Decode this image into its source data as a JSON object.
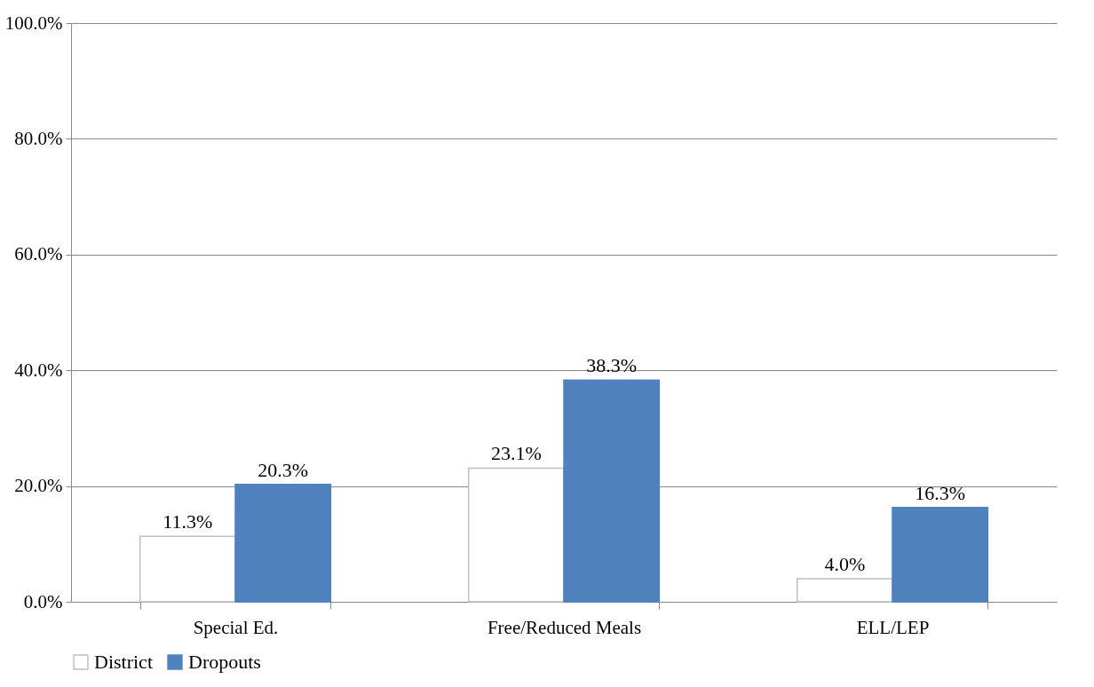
{
  "chart_data": {
    "type": "bar",
    "categories": [
      "Special Ed.",
      "Free/Reduced Meals",
      "ELL/LEP"
    ],
    "series": [
      {
        "name": "District",
        "color": "#ffffff",
        "values": [
          11.3,
          23.1,
          4.0
        ],
        "value_labels": [
          "11.3%",
          "23.1%",
          "4.0%"
        ]
      },
      {
        "name": "Dropouts",
        "color": "#4f81bd",
        "values": [
          20.3,
          38.3,
          16.3
        ],
        "value_labels": [
          "20.3%",
          "38.3%",
          "16.3%"
        ]
      }
    ],
    "ylim": [
      0,
      100
    ],
    "yticks": [
      {
        "value": 0,
        "label": "0.0%"
      },
      {
        "value": 20,
        "label": "20.0%"
      },
      {
        "value": 40,
        "label": "40.0%"
      },
      {
        "value": 60,
        "label": "60.0%"
      },
      {
        "value": 80,
        "label": "80.0%"
      },
      {
        "value": 100,
        "label": "100.0%"
      }
    ],
    "grid": "y",
    "legend": "bottom"
  }
}
